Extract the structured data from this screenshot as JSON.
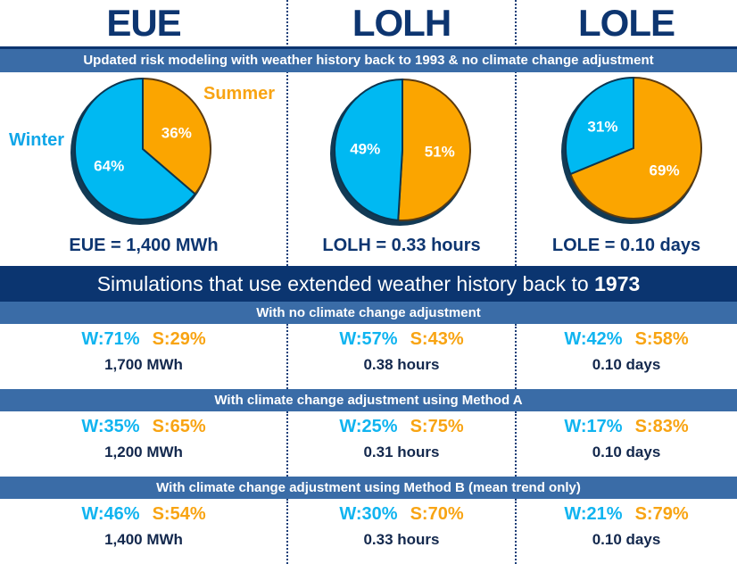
{
  "headers": [
    "EUE",
    "LOLH",
    "LOLE"
  ],
  "top_band": "Updated risk modeling with weather history back to 1993 & no climate change adjustment",
  "legend": {
    "winter": "Winter",
    "summer": "Summer"
  },
  "colors": {
    "winter": "#00b9f2",
    "summer": "#fba500",
    "navy": "#0d3570",
    "band": "#3a6ca7"
  },
  "chart_data": [
    {
      "type": "pie",
      "title": "EUE",
      "categories": [
        "Winter",
        "Summer"
      ],
      "values": [
        64,
        36
      ],
      "labels": [
        "64%",
        "36%"
      ],
      "result": "EUE = 1,400 MWh"
    },
    {
      "type": "pie",
      "title": "LOLH",
      "categories": [
        "Winter",
        "Summer"
      ],
      "values": [
        49,
        51
      ],
      "labels": [
        "49%",
        "51%"
      ],
      "result": "LOLH = 0.33 hours"
    },
    {
      "type": "pie",
      "title": "LOLE",
      "categories": [
        "Winter",
        "Summer"
      ],
      "values": [
        31,
        69
      ],
      "labels": [
        "31%",
        "69%"
      ],
      "result": "LOLE = 0.10 days"
    }
  ],
  "sim_title_prefix": "Simulations that use extended weather history back to ",
  "sim_title_year": "1973",
  "scenarios": [
    {
      "label": "With no climate change adjustment",
      "cells": [
        {
          "w": "W:71%",
          "s": "S:29%",
          "value": "1,700 MWh"
        },
        {
          "w": "W:57%",
          "s": "S:43%",
          "value": "0.38 hours"
        },
        {
          "w": "W:42%",
          "s": "S:58%",
          "value": "0.10 days"
        }
      ]
    },
    {
      "label": "With climate change adjustment using Method A",
      "cells": [
        {
          "w": "W:35%",
          "s": "S:65%",
          "value": "1,200 MWh"
        },
        {
          "w": "W:25%",
          "s": "S:75%",
          "value": "0.31 hours"
        },
        {
          "w": "W:17%",
          "s": "S:83%",
          "value": "0.10 days"
        }
      ]
    },
    {
      "label": "With climate change adjustment using Method B (mean trend only)",
      "cells": [
        {
          "w": "W:46%",
          "s": "S:54%",
          "value": "1,400 MWh"
        },
        {
          "w": "W:30%",
          "s": "S:70%",
          "value": "0.33 hours"
        },
        {
          "w": "W:21%",
          "s": "S:79%",
          "value": "0.10 days"
        }
      ]
    }
  ]
}
